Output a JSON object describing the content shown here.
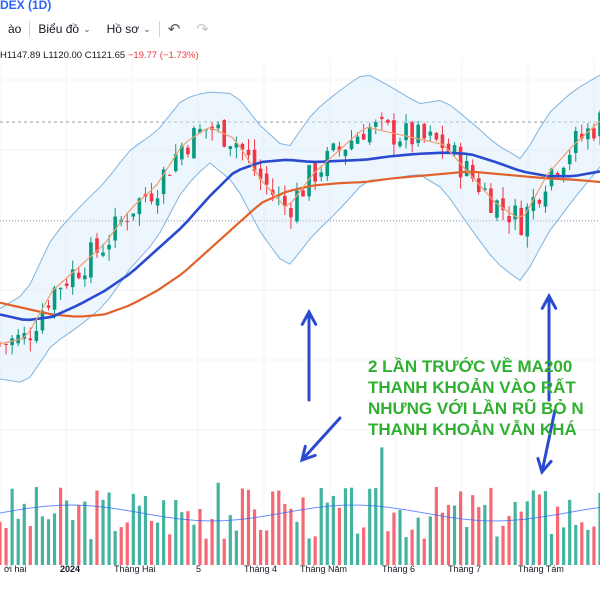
{
  "header": {
    "title": "DEX (1D)",
    "toolbar": {
      "item1": "ào",
      "chart_menu": "Biểu đồ",
      "profile_menu": "Hồ sơ"
    },
    "ohlc": {
      "h": "H1147.89",
      "l": "L1120.00",
      "c": "C1121.65",
      "change": "−19.77 (−1.73%)"
    }
  },
  "chart_data": {
    "type": "line",
    "title": "",
    "colors": {
      "up": "#089981",
      "down": "#f23645",
      "ma_long": "#e0622a",
      "ma_mid": "#2a4bd0",
      "ma_short": "#f0a070",
      "bollinger": "#7fb3e0"
    },
    "x_ticks": [
      "ới hai",
      "2024",
      "Tháng Hai",
      "5",
      "Tháng 4",
      "Tháng Năm",
      "Tháng 6",
      "Tháng 7",
      "Tháng Tám"
    ],
    "series": [
      {
        "values": [
          1150,
          1145,
          1140,
          1138,
          1140,
          1148,
          1160,
          1175,
          1195,
          1215,
          1235,
          1245,
          1250,
          1252,
          1253,
          1256,
          1258,
          1260,
          1262,
          1260,
          1258,
          1256,
          1255,
          1253
        ]
      },
      {
        "values": [
          1140,
          1135,
          1138,
          1148,
          1160,
          1175,
          1195,
          1215,
          1240,
          1262,
          1270,
          1272,
          1270,
          1271,
          1272,
          1275,
          1277,
          1278,
          1277,
          1270,
          1262,
          1258,
          1258,
          1262
        ]
      },
      {
        "values": [
          1115,
          1120,
          1160,
          1180,
          1200,
          1230,
          1250,
          1285,
          1300,
          1290,
          1255,
          1230,
          1260,
          1280,
          1300,
          1295,
          1290,
          1285,
          1260,
          1235,
          1220,
          1260,
          1285,
          1305
        ]
      }
    ],
    "annotation": [
      "2 LẦN TRƯỚC VỀ MA200",
      "THANH KHOẢN VÀO RẤT",
      "NHƯNG VỚI LẦN RŨ BỎ N",
      " THANH KHOẢN VẪN KHÁ"
    ]
  }
}
